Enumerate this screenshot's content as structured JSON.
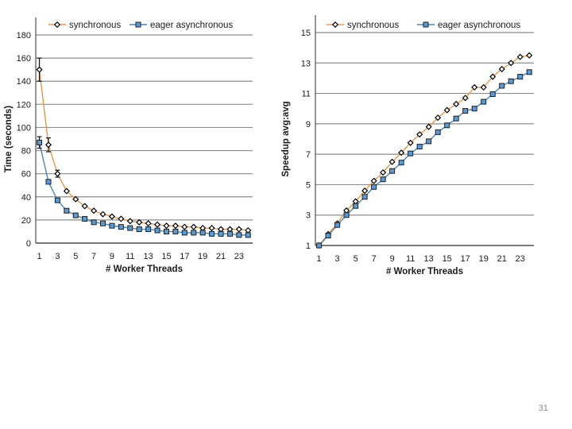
{
  "slide_number": "31",
  "colors": {
    "synchronous": "#E8964B",
    "eager": "#4A86B8",
    "eager_fill": "#5B9BD5",
    "grid": "#8C8C8C",
    "axis": "#4F4F4F"
  },
  "chart_data": [
    {
      "type": "line",
      "ylabel": "Time (seconds)",
      "xlabel": "# Worker Threads",
      "x": [
        1,
        2,
        3,
        4,
        5,
        6,
        7,
        8,
        9,
        10,
        11,
        12,
        13,
        14,
        15,
        16,
        17,
        18,
        19,
        20,
        21,
        22,
        23,
        24
      ],
      "xticks": [
        1,
        3,
        5,
        7,
        9,
        11,
        13,
        15,
        17,
        19,
        21,
        23
      ],
      "ylim": [
        0,
        180
      ],
      "yticks": [
        0,
        20,
        40,
        60,
        80,
        100,
        120,
        140,
        160,
        180
      ],
      "series": [
        {
          "name": "synchronous",
          "marker": "diamond",
          "values": [
            150,
            85,
            60,
            45,
            38,
            32,
            28,
            25,
            23,
            21,
            19,
            18,
            17,
            16,
            15,
            15,
            14,
            14,
            13,
            13,
            12,
            12,
            12,
            11
          ],
          "errors": [
            [
              1,
              10
            ],
            [
              2,
              6
            ],
            [
              3,
              3
            ]
          ]
        },
        {
          "name": "eager asynchronous",
          "marker": "square",
          "values": [
            87,
            53,
            37,
            28,
            24,
            21,
            18,
            17,
            15,
            14,
            13,
            12,
            12,
            11,
            10,
            10,
            9,
            9,
            9,
            8,
            8,
            8,
            7,
            7
          ],
          "errors": [
            [
              1,
              5
            ]
          ]
        }
      ]
    },
    {
      "type": "line",
      "ylabel": "Speedup avg:avg",
      "xlabel": "# Worker Threads",
      "x": [
        1,
        2,
        3,
        4,
        5,
        6,
        7,
        8,
        9,
        10,
        11,
        12,
        13,
        14,
        15,
        16,
        17,
        18,
        19,
        20,
        21,
        22,
        23,
        24
      ],
      "xticks": [
        1,
        3,
        5,
        7,
        9,
        11,
        13,
        15,
        17,
        19,
        21,
        23
      ],
      "ylim": [
        1,
        15
      ],
      "yticks": [
        1,
        3,
        5,
        7,
        9,
        11,
        13,
        15
      ],
      "series": [
        {
          "name": "synchronous",
          "marker": "diamond",
          "values": [
            1,
            1.75,
            2.45,
            3.3,
            3.9,
            4.6,
            5.25,
            5.8,
            6.5,
            7.1,
            7.75,
            8.3,
            8.8,
            9.4,
            9.9,
            10.3,
            10.7,
            11.4,
            11.4,
            12.1,
            12.6,
            13.0,
            13.4,
            13.5
          ]
        },
        {
          "name": "eager asynchronous",
          "marker": "square",
          "values": [
            1,
            1.65,
            2.35,
            3.0,
            3.6,
            4.2,
            4.85,
            5.35,
            5.9,
            6.45,
            7.05,
            7.5,
            7.85,
            8.45,
            8.9,
            9.35,
            9.85,
            10.0,
            10.45,
            10.95,
            11.5,
            11.8,
            12.1,
            12.4
          ]
        }
      ]
    }
  ]
}
